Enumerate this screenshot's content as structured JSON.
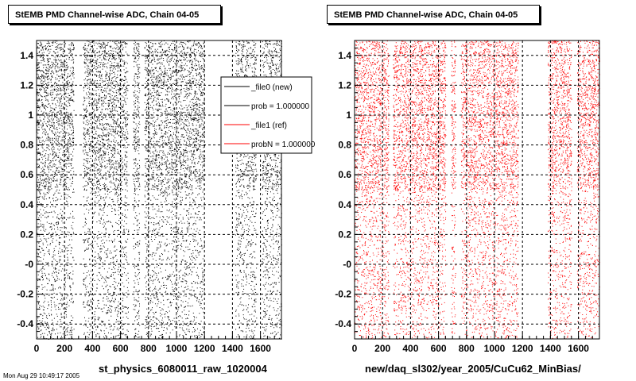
{
  "footer_stamp": "Mon Aug 29 10:49:17 2005",
  "panels": [
    {
      "title": "StEMB PMD Channel-wise ADC, Chain 04-05",
      "caption": "st_physics_6080011_raw_1020004",
      "color": "#000000"
    },
    {
      "title": "StEMB PMD Channel-wise ADC, Chain 04-05",
      "caption": "new/daq_sl302/year_2005/CuCu62_MinBias/",
      "color": "#ff0000"
    }
  ],
  "legend": {
    "entries": [
      {
        "label": "_file0 (new)",
        "color": "#000000"
      },
      {
        "label": "prob = 1.000000",
        "color": "#000000"
      },
      {
        "label": "_file1 (ref)",
        "color": "#ff0000"
      },
      {
        "label": "probN = 1.000000",
        "color": "#ff0000"
      }
    ]
  },
  "chart_data": [
    {
      "type": "scatter",
      "title": "StEMB PMD Channel-wise ADC, Chain 04-05",
      "xlabel": "st_physics_6080011_raw_1020004",
      "ylabel": "",
      "xlim": [
        0,
        1750
      ],
      "ylim": [
        -0.5,
        1.5
      ],
      "xticks": [
        0,
        200,
        400,
        600,
        800,
        1000,
        1200,
        1400,
        1600
      ],
      "yticks": [
        -0.4,
        -0.2,
        0,
        0.2,
        0.4,
        0.6,
        0.8,
        1,
        1.2,
        1.4
      ],
      "ytick_labels": [
        "-0.4",
        "-0.2",
        "-0",
        "0.2",
        "0.4",
        "0.6",
        "0.8",
        "1",
        "1.2",
        "1.4"
      ],
      "grid": "dashed",
      "series": [
        {
          "color": "#000000"
        }
      ],
      "dense_above_y": 0.5,
      "empty_x_bands": [
        [
          265,
          330
        ],
        [
          655,
          690
        ],
        [
          735,
          770
        ],
        [
          1200,
          1420
        ],
        [
          1570,
          1610
        ]
      ],
      "upper_only_gaps": [
        [
          285,
          310
        ],
        [
          650,
          690
        ],
        [
          740,
          770
        ],
        [
          1570,
          1610
        ]
      ]
    },
    {
      "type": "scatter",
      "title": "StEMB PMD Channel-wise ADC, Chain 04-05",
      "xlabel": "new/daq_sl302/year_2005/CuCu62_MinBias/",
      "ylabel": "",
      "xlim": [
        0,
        1750
      ],
      "ylim": [
        -0.5,
        1.5
      ],
      "xticks": [
        0,
        200,
        400,
        600,
        800,
        1000,
        1200,
        1400,
        1600
      ],
      "yticks": [
        -0.4,
        -0.2,
        0,
        0.2,
        0.4,
        0.6,
        0.8,
        1,
        1.2,
        1.4
      ],
      "ytick_labels": [
        "-0.4",
        "-0.2",
        "-0",
        "0.2",
        "0.4",
        "0.6",
        "0.8",
        "1",
        "1.2",
        "1.4"
      ],
      "grid": "dashed",
      "series": [
        {
          "color": "#ff0000"
        }
      ],
      "dense_above_y": 0.5,
      "empty_x_bands": [
        [
          245,
          275
        ],
        [
          650,
          690
        ],
        [
          720,
          760
        ],
        [
          1170,
          1380
        ],
        [
          1550,
          1590
        ]
      ],
      "upper_only_gaps": [
        [
          665,
          690
        ],
        [
          720,
          760
        ],
        [
          1550,
          1590
        ]
      ]
    }
  ]
}
